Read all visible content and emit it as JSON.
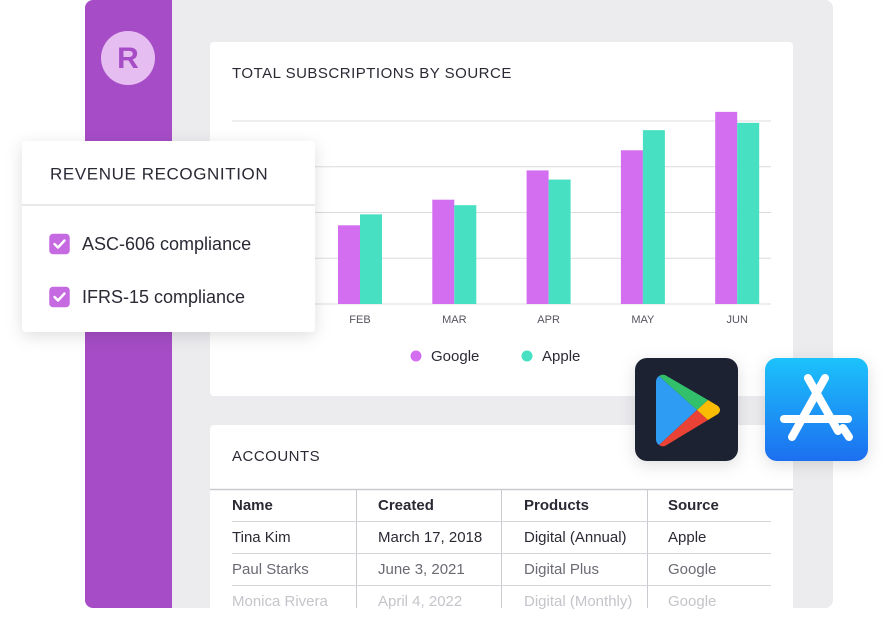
{
  "logo_text": "R",
  "chart_data": {
    "type": "bar",
    "title": "TOTAL SUBSCRIPTIONS BY SOURCE",
    "categories": [
      "FEB",
      "MAR",
      "APR",
      "MAY",
      "JUN"
    ],
    "series": [
      {
        "name": "Google",
        "color": "#d36ef0",
        "values": [
          43,
          57,
          73,
          84,
          105
        ]
      },
      {
        "name": "Apple",
        "color": "#47e0c2",
        "values": [
          49,
          54,
          68,
          95,
          99
        ]
      }
    ],
    "ylim": [
      0,
      100
    ],
    "yticks": [
      0,
      25,
      50,
      75,
      100
    ],
    "grid": true
  },
  "revenue_recognition": {
    "title": "REVENUE RECOGNITION",
    "items": [
      {
        "label": "ASC-606 compliance",
        "checked": true
      },
      {
        "label": "IFRS-15 compliance",
        "checked": true
      }
    ]
  },
  "accounts": {
    "title": "ACCOUNTS",
    "columns": [
      "Name",
      "Created",
      "Products",
      "Source"
    ],
    "rows": [
      [
        "Tina Kim",
        "March 17, 2018",
        "Digital (Annual)",
        "Apple"
      ],
      [
        "Paul Starks",
        "June 3, 2021",
        "Digital Plus",
        "Google"
      ],
      [
        "Monica Rivera",
        "April 4, 2022",
        "Digital (Monthly)",
        "Google"
      ]
    ]
  }
}
